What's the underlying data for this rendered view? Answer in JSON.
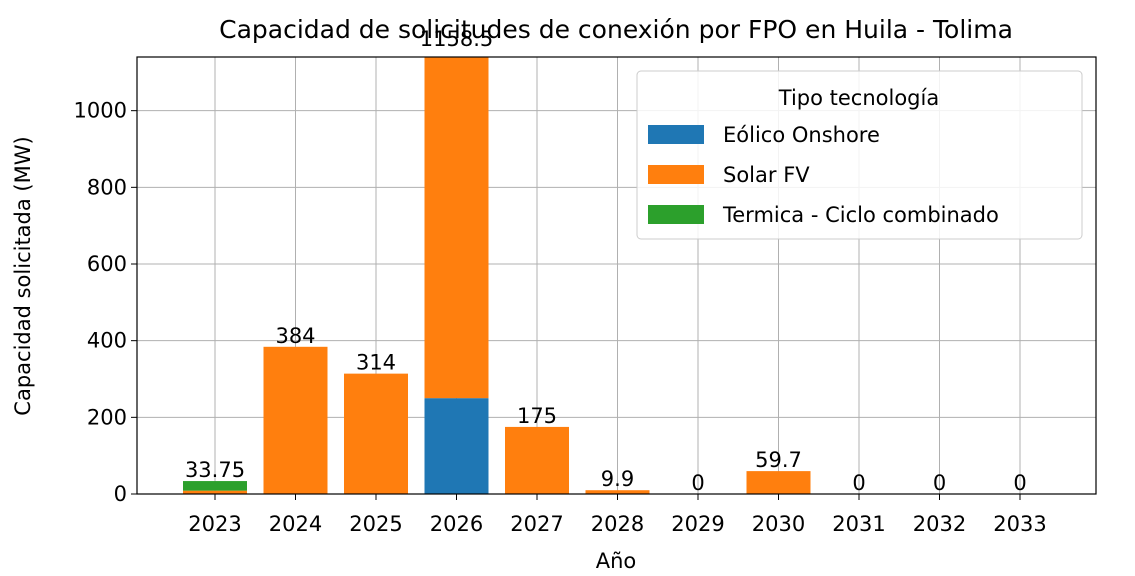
{
  "chart_data": {
    "type": "bar",
    "stacked": true,
    "title": "Capacidad de solicitudes de conexión por FPO en Huila - Tolima",
    "x_label": "Año",
    "y_label": "Capacidad solicitada (MW)",
    "categories": [
      "2023",
      "2024",
      "2025",
      "2026",
      "2027",
      "2028",
      "2029",
      "2030",
      "2031",
      "2032",
      "2033"
    ],
    "series": [
      {
        "name": "Eólico Onshore",
        "color": "#1f77b4",
        "values": [
          0,
          0,
          0,
          250,
          0,
          0,
          0,
          0,
          0,
          0,
          0
        ]
      },
      {
        "name": "Solar FV",
        "color": "#ff7f0e",
        "values": [
          8.75,
          384,
          314,
          908.5,
          175,
          9.9,
          0,
          59.7,
          0,
          0,
          0
        ]
      },
      {
        "name": "Termica - Ciclo combinado",
        "color": "#2ca02c",
        "values": [
          25,
          0,
          0,
          0,
          0,
          0,
          0,
          0,
          0,
          0,
          0
        ]
      }
    ],
    "total_labels": [
      "33.75",
      "384",
      "314",
      "1158.5",
      "175",
      "9.9",
      "0",
      "59.7",
      "0",
      "0",
      "0"
    ],
    "legend_title": "Tipo tecnología",
    "legend": "upper right",
    "ylim": [
      0,
      1140
    ],
    "yticks": [
      0,
      200,
      400,
      600,
      800,
      1000
    ],
    "grid": true
  }
}
